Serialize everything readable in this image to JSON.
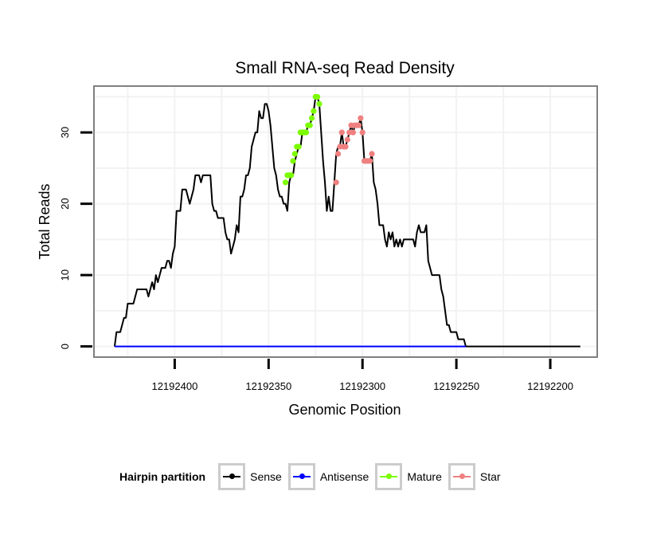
{
  "chart_data": {
    "type": "line",
    "title": "Small RNA-seq Read Density",
    "xlabel": "Genomic Position",
    "ylabel": "Total Reads",
    "xlim": [
      12192443,
      12192175
    ],
    "ylim": [
      -1.5,
      36.5
    ],
    "x_reversed": true,
    "x_ticks": [
      12192400,
      12192350,
      12192300,
      12192250,
      12192200
    ],
    "x_tick_labels": [
      "12192400",
      "12192350",
      "12192300",
      "12192250",
      "12192200"
    ],
    "y_ticks": [
      0,
      10,
      20,
      30
    ],
    "y_tick_labels": [
      "0",
      "10",
      "20",
      "30"
    ],
    "grid": true,
    "legend_position": "bottom",
    "legend": {
      "title": "Hairpin partition",
      "entries": [
        {
          "name": "Sense",
          "color": "#000000"
        },
        {
          "name": "Antisense",
          "color": "#0000ff"
        },
        {
          "name": "Mature",
          "color": "#7cfc00"
        },
        {
          "name": "Star",
          "color": "#f08080"
        }
      ]
    },
    "series": [
      {
        "name": "Sense",
        "color": "#000000",
        "points": [
          [
            12192432,
            0
          ],
          [
            12192431,
            2
          ],
          [
            12192429,
            2
          ],
          [
            12192428,
            3
          ],
          [
            12192427,
            4
          ],
          [
            12192426,
            4
          ],
          [
            12192425,
            6
          ],
          [
            12192422,
            6
          ],
          [
            12192421,
            7
          ],
          [
            12192420,
            8
          ],
          [
            12192415,
            8
          ],
          [
            12192414,
            7
          ],
          [
            12192413,
            8
          ],
          [
            12192412,
            9
          ],
          [
            12192411,
            8
          ],
          [
            12192410,
            10
          ],
          [
            12192409,
            9
          ],
          [
            12192408,
            10
          ],
          [
            12192407,
            11
          ],
          [
            12192405,
            11
          ],
          [
            12192404,
            12
          ],
          [
            12192403,
            12
          ],
          [
            12192402,
            11
          ],
          [
            12192401,
            13
          ],
          [
            12192400,
            14
          ],
          [
            12192399,
            19
          ],
          [
            12192397,
            19
          ],
          [
            12192396,
            22
          ],
          [
            12192394,
            22
          ],
          [
            12192393,
            21
          ],
          [
            12192392,
            20
          ],
          [
            12192391,
            21
          ],
          [
            12192390,
            22
          ],
          [
            12192389,
            24
          ],
          [
            12192387,
            24
          ],
          [
            12192386,
            23
          ],
          [
            12192385,
            24
          ],
          [
            12192381,
            24
          ],
          [
            12192380,
            20
          ],
          [
            12192379,
            19
          ],
          [
            12192378,
            19
          ],
          [
            12192377,
            18
          ],
          [
            12192374,
            18
          ],
          [
            12192373,
            16
          ],
          [
            12192372,
            15
          ],
          [
            12192371,
            15
          ],
          [
            12192370,
            13
          ],
          [
            12192369,
            14
          ],
          [
            12192368,
            15
          ],
          [
            12192367,
            17
          ],
          [
            12192366,
            16
          ],
          [
            12192365,
            21
          ],
          [
            12192364,
            21
          ],
          [
            12192363,
            22
          ],
          [
            12192362,
            24
          ],
          [
            12192361,
            24
          ],
          [
            12192360,
            25
          ],
          [
            12192359,
            28
          ],
          [
            12192358,
            29
          ],
          [
            12192357,
            30
          ],
          [
            12192356,
            30
          ],
          [
            12192355,
            33
          ],
          [
            12192354,
            32
          ],
          [
            12192353,
            32
          ],
          [
            12192352,
            34
          ],
          [
            12192351,
            34
          ],
          [
            12192350,
            33
          ],
          [
            12192349,
            31
          ],
          [
            12192348,
            28
          ],
          [
            12192347,
            25
          ],
          [
            12192346,
            24
          ],
          [
            12192345,
            22
          ],
          [
            12192344,
            21
          ],
          [
            12192343,
            21
          ],
          [
            12192342,
            20
          ],
          [
            12192341,
            20
          ],
          [
            12192340,
            19
          ],
          [
            12192339,
            23
          ],
          [
            12192338,
            24
          ],
          [
            12192337,
            24
          ],
          [
            12192336,
            26
          ],
          [
            12192335,
            27
          ],
          [
            12192334,
            28
          ],
          [
            12192333,
            28
          ],
          [
            12192332,
            30
          ],
          [
            12192331,
            30
          ],
          [
            12192330,
            30
          ],
          [
            12192329,
            31
          ],
          [
            12192328,
            31
          ],
          [
            12192327,
            32
          ],
          [
            12192326,
            33
          ],
          [
            12192325,
            35
          ],
          [
            12192324,
            35
          ],
          [
            12192323,
            34
          ],
          [
            12192322,
            30
          ],
          [
            12192321,
            26
          ],
          [
            12192320,
            23
          ],
          [
            12192319,
            19
          ],
          [
            12192318,
            21
          ],
          [
            12192317,
            19
          ],
          [
            12192316,
            19
          ],
          [
            12192315,
            23
          ],
          [
            12192314,
            27
          ],
          [
            12192313,
            28
          ],
          [
            12192312,
            28
          ],
          [
            12192311,
            30
          ],
          [
            12192310,
            28
          ],
          [
            12192309,
            28
          ],
          [
            12192308,
            29
          ],
          [
            12192307,
            30
          ],
          [
            12192306,
            31
          ],
          [
            12192305,
            30
          ],
          [
            12192304,
            31
          ],
          [
            12192303,
            31
          ],
          [
            12192302,
            31
          ],
          [
            12192301,
            32
          ],
          [
            12192300,
            30
          ],
          [
            12192299,
            26
          ],
          [
            12192298,
            26
          ],
          [
            12192297,
            26
          ],
          [
            12192296,
            26
          ],
          [
            12192295,
            27
          ],
          [
            12192294,
            23
          ],
          [
            12192293,
            22
          ],
          [
            12192292,
            20
          ],
          [
            12192291,
            17
          ],
          [
            12192290,
            17
          ],
          [
            12192289,
            17
          ],
          [
            12192288,
            15
          ],
          [
            12192287,
            14
          ],
          [
            12192286,
            16
          ],
          [
            12192285,
            15
          ],
          [
            12192284,
            16
          ],
          [
            12192283,
            14
          ],
          [
            12192282,
            15
          ],
          [
            12192281,
            14
          ],
          [
            12192280,
            15
          ],
          [
            12192279,
            14
          ],
          [
            12192278,
            15
          ],
          [
            12192277,
            15
          ],
          [
            12192276,
            15
          ],
          [
            12192275,
            15
          ],
          [
            12192274,
            15
          ],
          [
            12192273,
            15
          ],
          [
            12192272,
            14
          ],
          [
            12192271,
            16
          ],
          [
            12192270,
            17
          ],
          [
            12192269,
            16
          ],
          [
            12192268,
            16
          ],
          [
            12192267,
            16
          ],
          [
            12192266,
            17
          ],
          [
            12192265,
            12
          ],
          [
            12192264,
            11
          ],
          [
            12192263,
            10
          ],
          [
            12192262,
            10
          ],
          [
            12192259,
            10
          ],
          [
            12192258,
            8
          ],
          [
            12192257,
            7
          ],
          [
            12192256,
            5
          ],
          [
            12192255,
            3
          ],
          [
            12192254,
            3
          ],
          [
            12192253,
            2
          ],
          [
            12192252,
            2
          ],
          [
            12192250,
            2
          ],
          [
            12192249,
            1
          ],
          [
            12192246,
            1
          ],
          [
            12192245,
            0
          ],
          [
            12192184,
            0
          ]
        ]
      },
      {
        "name": "Antisense",
        "color": "#0000ff",
        "points": [
          [
            12192432,
            0
          ],
          [
            12192245,
            0
          ]
        ]
      },
      {
        "name": "Mature",
        "color": "#7cfc00",
        "points": [
          [
            12192341,
            23
          ],
          [
            12192340,
            24
          ],
          [
            12192339,
            24
          ],
          [
            12192338,
            24
          ],
          [
            12192337,
            26
          ],
          [
            12192336,
            27
          ],
          [
            12192335,
            28
          ],
          [
            12192334,
            28
          ],
          [
            12192333,
            30
          ],
          [
            12192332,
            30
          ],
          [
            12192331,
            30
          ],
          [
            12192330,
            30
          ],
          [
            12192329,
            31
          ],
          [
            12192328,
            31
          ],
          [
            12192327,
            32
          ],
          [
            12192326,
            33
          ],
          [
            12192325,
            35
          ],
          [
            12192324,
            35
          ],
          [
            12192323,
            34
          ]
        ]
      },
      {
        "name": "Star",
        "color": "#f08080",
        "points": [
          [
            12192314,
            23
          ],
          [
            12192313,
            27
          ],
          [
            12192312,
            28
          ],
          [
            12192311,
            30
          ],
          [
            12192310,
            28
          ],
          [
            12192309,
            28
          ],
          [
            12192308,
            29
          ],
          [
            12192307,
            30
          ],
          [
            12192306,
            31
          ],
          [
            12192305,
            30
          ],
          [
            12192304,
            31
          ],
          [
            12192303,
            31
          ],
          [
            12192302,
            31
          ],
          [
            12192301,
            32
          ],
          [
            12192300,
            30
          ],
          [
            12192299,
            26
          ],
          [
            12192298,
            26
          ],
          [
            12192297,
            26
          ],
          [
            12192296,
            26
          ],
          [
            12192295,
            27
          ]
        ]
      }
    ]
  }
}
